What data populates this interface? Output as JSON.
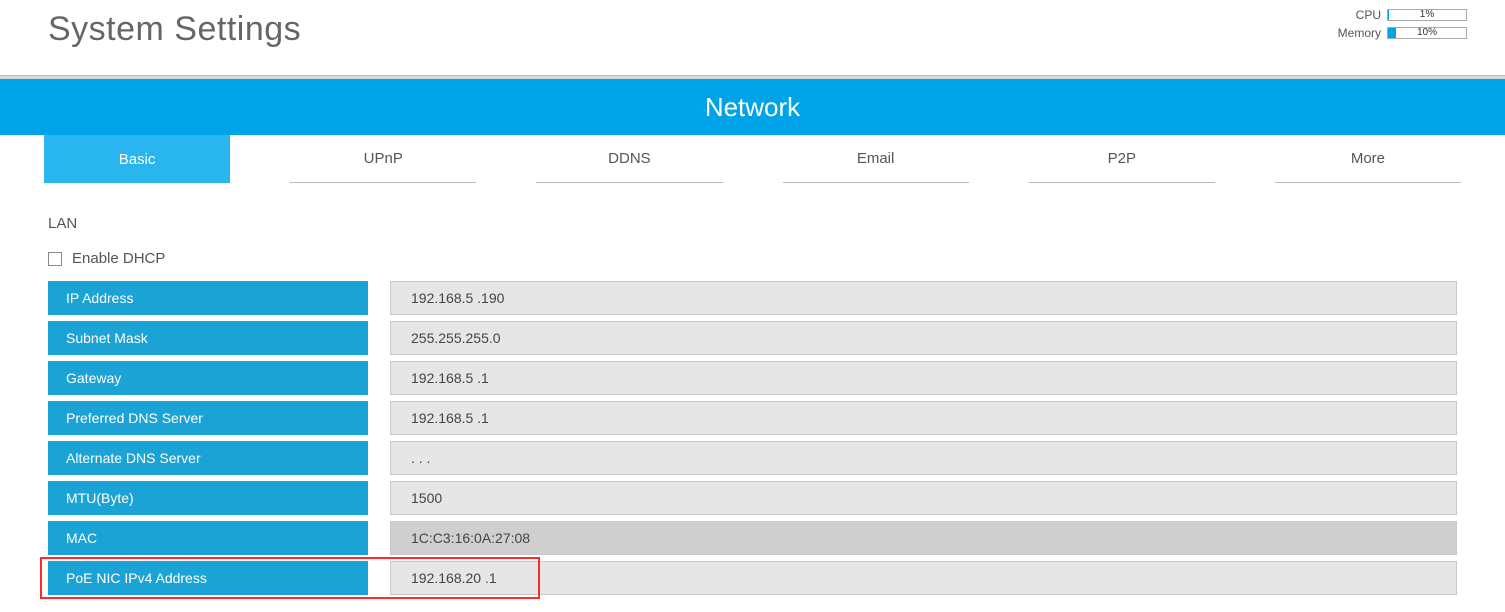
{
  "header": {
    "title": "System Settings",
    "stats": {
      "cpu": {
        "label": "CPU",
        "value_text": "1%",
        "percent": 1
      },
      "memory": {
        "label": "Memory",
        "value_text": "10%",
        "percent": 10
      }
    }
  },
  "section": {
    "title": "Network"
  },
  "tabs": [
    {
      "label": "Basic",
      "active": true
    },
    {
      "label": "UPnP",
      "active": false
    },
    {
      "label": "DDNS",
      "active": false
    },
    {
      "label": "Email",
      "active": false
    },
    {
      "label": "P2P",
      "active": false
    },
    {
      "label": "More",
      "active": false
    }
  ],
  "lan": {
    "heading": "LAN",
    "dhcp": {
      "label": "Enable DHCP",
      "checked": false
    },
    "rows": [
      {
        "key": "IP Address",
        "value": "192.168.5 .190",
        "shade": "light",
        "editable": true
      },
      {
        "key": "Subnet Mask",
        "value": "255.255.255.0",
        "shade": "light",
        "editable": true
      },
      {
        "key": "Gateway",
        "value": "192.168.5 .1",
        "shade": "light",
        "editable": true
      },
      {
        "key": "Preferred DNS Server",
        "value": "192.168.5 .1",
        "shade": "light",
        "editable": true
      },
      {
        "key": "Alternate DNS Server",
        "value": " .  .  .",
        "shade": "light",
        "editable": true
      },
      {
        "key": "MTU(Byte)",
        "value": "1500",
        "shade": "light",
        "editable": true
      },
      {
        "key": "MAC",
        "value": "1C:C3:16:0A:27:08",
        "shade": "dark",
        "editable": false
      },
      {
        "key": "PoE NIC IPv4 Address",
        "value": "192.168.20 .1",
        "shade": "light",
        "editable": true
      }
    ],
    "highlight_row_index": 7
  },
  "colors": {
    "accent": "#00a2e8",
    "tab_active": "#29b6ef",
    "row_key_bg": "#1aa3d4",
    "value_bg_light": "#e6e6e6",
    "value_bg_dark": "#cfcfcf",
    "highlight_border": "#ff2a2a"
  }
}
